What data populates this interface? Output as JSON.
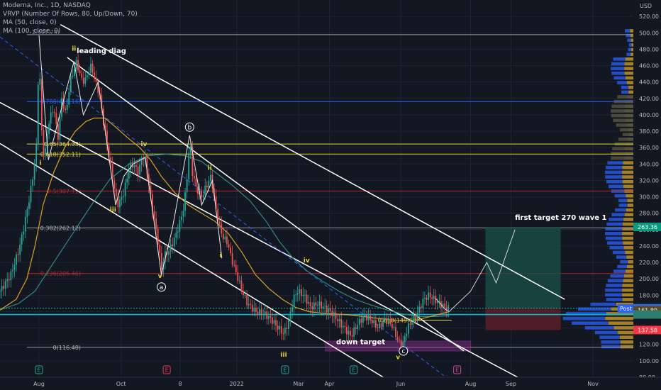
{
  "header": {
    "title": "Moderna, Inc., 1D, NASDAQ",
    "indicators": [
      "VRVP (Number Of Rows, 80, Up/Down, 70)",
      "MA (50, close, 0)",
      "MA (100, close, 0)"
    ]
  },
  "colors": {
    "background": "#131722",
    "grid": "#1f2330",
    "candle_up": "#26a69a",
    "candle_down": "#ef5350",
    "ma50": "#d9a426",
    "ma100": "#2e8b7d",
    "fib_yellow": "#e8d33a",
    "fib_blue": "#2962ff",
    "fib_red": "#b22833",
    "trend": "#ffffff",
    "target_zone": "#8e2d8e",
    "cyan": "#00bcd4"
  },
  "chart_data": {
    "type": "candlestick",
    "y_axis_label": "USD",
    "ylim": [
      80,
      540
    ],
    "y_ticks": [
      80,
      100,
      120,
      140,
      160,
      180,
      200,
      220,
      240,
      260,
      280,
      300,
      320,
      340,
      360,
      380,
      400,
      420,
      440,
      460,
      480,
      500,
      520
    ],
    "x_ticks": [
      "Aug",
      "Oct",
      "8",
      "2022",
      "Mar",
      "Apr",
      "Jun",
      "Aug",
      "Sep",
      "Nov"
    ],
    "x_tick_days": [
      29,
      90,
      134,
      176,
      222,
      245,
      298,
      350,
      380,
      441
    ],
    "x_range_days": [
      0,
      471
    ],
    "price_path": [
      [
        0,
        185
      ],
      [
        8,
        205
      ],
      [
        14,
        235
      ],
      [
        18,
        265
      ],
      [
        22,
        300
      ],
      [
        25,
        330
      ],
      [
        27,
        360
      ],
      [
        28,
        410
      ],
      [
        29,
        497
      ],
      [
        30,
        420
      ],
      [
        31,
        380
      ],
      [
        33,
        345
      ],
      [
        36,
        390
      ],
      [
        40,
        410
      ],
      [
        43,
        370
      ],
      [
        46,
        420
      ],
      [
        49,
        400
      ],
      [
        52,
        440
      ],
      [
        55,
        455
      ],
      [
        57,
        465
      ],
      [
        60,
        445
      ],
      [
        63,
        440
      ],
      [
        65,
        450
      ],
      [
        68,
        460
      ],
      [
        71,
        440
      ],
      [
        74,
        425
      ],
      [
        77,
        390
      ],
      [
        80,
        360
      ],
      [
        83,
        330
      ],
      [
        86,
        300
      ],
      [
        88,
        290
      ],
      [
        92,
        305
      ],
      [
        96,
        335
      ],
      [
        99,
        340
      ],
      [
        103,
        330
      ],
      [
        106,
        350
      ],
      [
        108,
        345
      ],
      [
        112,
        300
      ],
      [
        115,
        270
      ],
      [
        118,
        240
      ],
      [
        120,
        210
      ],
      [
        122,
        228
      ],
      [
        126,
        235
      ],
      [
        130,
        250
      ],
      [
        134,
        270
      ],
      [
        137,
        290
      ],
      [
        140,
        340
      ],
      [
        141,
        375
      ],
      [
        143,
        330
      ],
      [
        146,
        310
      ],
      [
        150,
        300
      ],
      [
        154,
        315
      ],
      [
        157,
        325
      ],
      [
        160,
        290
      ],
      [
        163,
        265
      ],
      [
        166,
        250
      ],
      [
        169,
        245
      ],
      [
        172,
        225
      ],
      [
        176,
        205
      ],
      [
        180,
        185
      ],
      [
        184,
        170
      ],
      [
        190,
        160
      ],
      [
        196,
        158
      ],
      [
        202,
        150
      ],
      [
        207,
        140
      ],
      [
        211,
        133
      ],
      [
        215,
        150
      ],
      [
        218,
        175
      ],
      [
        221,
        185
      ],
      [
        226,
        180
      ],
      [
        231,
        165
      ],
      [
        236,
        170
      ],
      [
        241,
        165
      ],
      [
        246,
        160
      ],
      [
        251,
        150
      ],
      [
        256,
        140
      ],
      [
        261,
        130
      ],
      [
        266,
        145
      ],
      [
        271,
        155
      ],
      [
        276,
        150
      ],
      [
        281,
        140
      ],
      [
        286,
        150
      ],
      [
        291,
        145
      ],
      [
        296,
        125
      ],
      [
        299,
        117
      ],
      [
        303,
        140
      ],
      [
        307,
        150
      ],
      [
        311,
        160
      ],
      [
        315,
        175
      ],
      [
        319,
        180
      ],
      [
        323,
        175
      ],
      [
        327,
        170
      ],
      [
        331,
        165
      ],
      [
        334,
        164
      ]
    ],
    "ma50_path": [
      [
        0,
        162
      ],
      [
        12,
        175
      ],
      [
        20,
        200
      ],
      [
        26,
        240
      ],
      [
        32,
        290
      ],
      [
        40,
        330
      ],
      [
        48,
        360
      ],
      [
        56,
        380
      ],
      [
        64,
        392
      ],
      [
        70,
        396
      ],
      [
        78,
        396
      ],
      [
        86,
        385
      ],
      [
        95,
        372
      ],
      [
        104,
        360
      ],
      [
        112,
        345
      ],
      [
        120,
        325
      ],
      [
        130,
        305
      ],
      [
        140,
        290
      ],
      [
        150,
        280
      ],
      [
        160,
        270
      ],
      [
        170,
        255
      ],
      [
        180,
        232
      ],
      [
        190,
        205
      ],
      [
        200,
        188
      ],
      [
        210,
        175
      ],
      [
        220,
        165
      ],
      [
        230,
        160
      ],
      [
        240,
        158
      ],
      [
        250,
        157
      ],
      [
        260,
        156
      ],
      [
        270,
        154
      ],
      [
        280,
        152
      ],
      [
        290,
        150
      ],
      [
        300,
        149
      ],
      [
        310,
        150
      ],
      [
        320,
        154
      ],
      [
        334,
        160
      ]
    ],
    "ma100_path": [
      [
        0,
        162
      ],
      [
        14,
        170
      ],
      [
        26,
        185
      ],
      [
        40,
        220
      ],
      [
        54,
        255
      ],
      [
        68,
        290
      ],
      [
        82,
        322
      ],
      [
        96,
        340
      ],
      [
        110,
        350
      ],
      [
        124,
        352
      ],
      [
        138,
        350
      ],
      [
        150,
        343
      ],
      [
        160,
        330
      ],
      [
        172,
        315
      ],
      [
        186,
        295
      ],
      [
        198,
        270
      ],
      [
        208,
        245
      ],
      [
        218,
        225
      ],
      [
        228,
        210
      ],
      [
        240,
        197
      ],
      [
        252,
        185
      ],
      [
        264,
        175
      ],
      [
        276,
        168
      ],
      [
        288,
        162
      ],
      [
        300,
        157
      ],
      [
        312,
        154
      ],
      [
        324,
        154
      ],
      [
        334,
        155
      ]
    ],
    "fib_levels": [
      {
        "label": "0.786(416.16)",
        "value": 416.16,
        "color": "#2962ff"
      },
      {
        "label": "0.65(364.33)",
        "value": 364.33,
        "color": "#e8d33a"
      },
      {
        "label": "0.618(352.11)",
        "value": 352.11,
        "color": "#e8d33a"
      },
      {
        "label": "0.5(307.11)",
        "value": 307.11,
        "color": "#b22833"
      },
      {
        "label": "0.382(262.12)",
        "value": 262.12,
        "color": "#9598a1"
      },
      {
        "label": "0.236(206.46)",
        "value": 206.46,
        "color": "#b22833"
      },
      {
        "label": "0(116.48)",
        "value": 116.48,
        "color": "#9598a1"
      }
    ],
    "top_level": {
      "label": "1(497.74)",
      "value": 497.74
    },
    "fib_extra": {
      "label": "0.618(149.63)",
      "value": 149.63
    },
    "right_labels": [
      {
        "value": 263.36,
        "text": "263.36",
        "bg": "#089981"
      },
      {
        "value": 164.09,
        "text": "164.09",
        "bg": "#089981"
      },
      {
        "value": 163.69,
        "text": "163.69",
        "bg": "#2962ff",
        "tag": "Post"
      },
      {
        "value": 161.8,
        "text": "161.80",
        "bg": "#5d4a1f"
      },
      {
        "value": 156.5,
        "text": "",
        "bg": "#2e7d6f"
      },
      {
        "value": 137.58,
        "text": "137.58",
        "bg": "#f23645"
      }
    ],
    "annotations": [
      {
        "text": "leading diag",
        "x": 57,
        "y": 475,
        "color": "#ffffff"
      },
      {
        "text": "first target 270 wave 1",
        "x": 383,
        "y": 272,
        "color": "#ffffff"
      },
      {
        "text": "down target",
        "x": 250,
        "y": 120,
        "color": "#ffffff"
      }
    ],
    "wave_labels": [
      {
        "text": "ii",
        "x": 55,
        "y": 478,
        "color": "#e8d33a"
      },
      {
        "text": "i",
        "x": 30,
        "y": 339,
        "color": "#e8d33a"
      },
      {
        "text": "iv",
        "x": 107,
        "y": 362,
        "color": "#e8d33a"
      },
      {
        "text": "iii",
        "x": 84,
        "y": 282,
        "color": "#e8d33a"
      },
      {
        "text": "v",
        "x": 119,
        "y": 201,
        "color": "#e8d33a"
      },
      {
        "text": "ii",
        "x": 156,
        "y": 333,
        "color": "#e8d33a"
      },
      {
        "text": "i",
        "x": 164,
        "y": 226,
        "color": "#e8d33a"
      },
      {
        "text": "iv",
        "x": 228,
        "y": 220,
        "color": "#e8d33a"
      },
      {
        "text": "iii",
        "x": 211,
        "y": 105,
        "color": "#e8d33a"
      },
      {
        "text": "v",
        "x": 296,
        "y": 102,
        "color": "#e8d33a"
      }
    ],
    "circle_labels": [
      {
        "text": "b",
        "x": 141,
        "y": 385
      },
      {
        "text": "a",
        "x": 120,
        "y": 190
      },
      {
        "text": "c",
        "x": 300,
        "y": 112
      }
    ],
    "event_markers": [
      "E",
      "E",
      "E",
      "E",
      "E"
    ],
    "event_days": [
      29,
      124,
      212,
      263,
      340
    ]
  }
}
